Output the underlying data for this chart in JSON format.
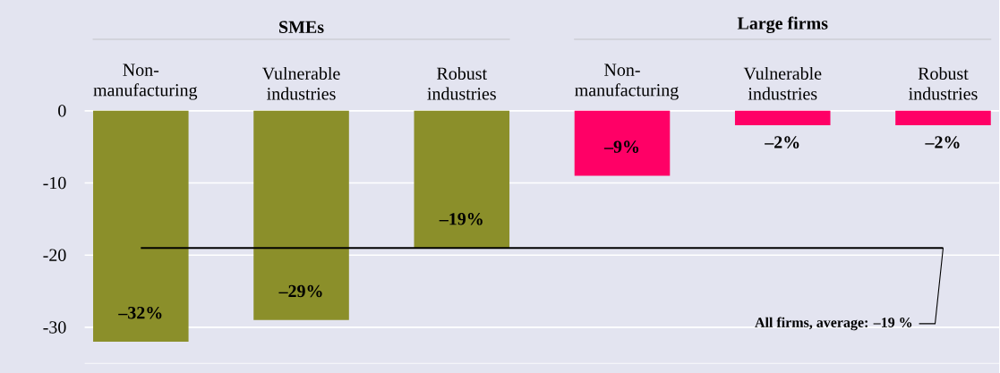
{
  "chart_data": {
    "type": "bar",
    "categories": [
      "Non-manufacturing",
      "Vulnerable industries",
      "Robust industries",
      "Non-manufacturing",
      "Vulnerable industries",
      "Robust industries"
    ],
    "values": [
      -32,
      -29,
      -19,
      -9,
      -2,
      -2
    ],
    "colors": [
      "#8b8f2a",
      "#8b8f2a",
      "#8b8f2a",
      "#ff0066",
      "#ff0066",
      "#ff0066"
    ],
    "value_labels": [
      "–32%",
      "–29%",
      "–19%",
      "–9%",
      "–2%",
      "–2%"
    ],
    "ylim": [
      -35,
      0
    ],
    "yticks": [
      -30,
      -20,
      -10,
      0
    ],
    "grid": "y",
    "ref_lines": [
      {
        "axis": "y",
        "value": -19,
        "label": "All firms, average: –19 %",
        "color": "#000000"
      }
    ],
    "annotations": [
      "SMEs",
      "Large firms"
    ]
  }
}
